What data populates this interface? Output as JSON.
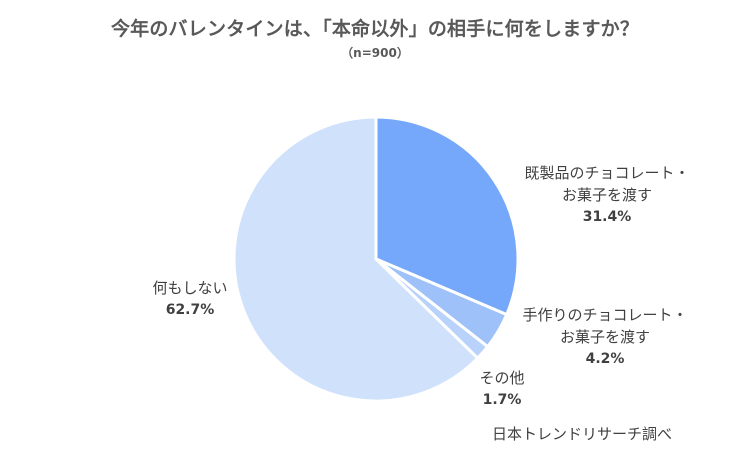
{
  "chart_data": {
    "type": "pie",
    "title": "今年のバレンタインは、「本命以外」の相手に何をしますか？",
    "subtitle": "（n=900）",
    "categories": [
      "既製品のチョコレート・お菓子を渡す",
      "手作りのチョコレート・お菓子を渡す",
      "その他",
      "何もしない"
    ],
    "values": [
      31.4,
      4.2,
      1.7,
      62.7
    ],
    "unit": "%",
    "colors": [
      "#75a8fa",
      "#9ec1fa",
      "#b8d2fb",
      "#cfe1fb"
    ],
    "start_angle_deg": 0,
    "direction": "clockwise",
    "legend": "none (data labels)",
    "source": "日本トレンドリサーチ調べ"
  },
  "labels": {
    "s0_line1": "既製品のチョコレート・",
    "s0_line2": "お菓子を渡す",
    "s0_pct": "31.4%",
    "s1_line1": "手作りのチョコレート・",
    "s1_line2": "お菓子を渡す",
    "s1_pct": "4.2%",
    "s2_line1": "その他",
    "s2_pct": "1.7%",
    "s3_line1": "何もしない",
    "s3_pct": "62.7%"
  }
}
